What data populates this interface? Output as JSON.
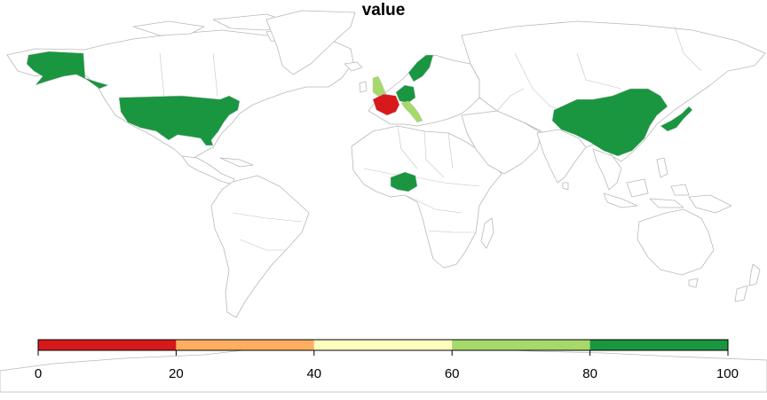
{
  "title": "value",
  "legend": {
    "breaks": [
      0,
      20,
      40,
      60,
      80,
      100
    ],
    "tick_labels": [
      "0",
      "20",
      "40",
      "60",
      "80",
      "100"
    ],
    "colors": [
      "#d7191c",
      "#fdae61",
      "#ffffbf",
      "#a6d96a",
      "#1a9641"
    ]
  },
  "countries": [
    {
      "name": "France",
      "value": 10
    },
    {
      "name": "United Kingdom",
      "value": 70
    },
    {
      "name": "Italy",
      "value": 70
    },
    {
      "name": "United States",
      "value": 90
    },
    {
      "name": "Sweden",
      "value": 90
    },
    {
      "name": "Germany",
      "value": 90
    },
    {
      "name": "Nigeria",
      "value": 90
    },
    {
      "name": "China",
      "value": 90
    },
    {
      "name": "Japan",
      "value": 90
    }
  ]
}
